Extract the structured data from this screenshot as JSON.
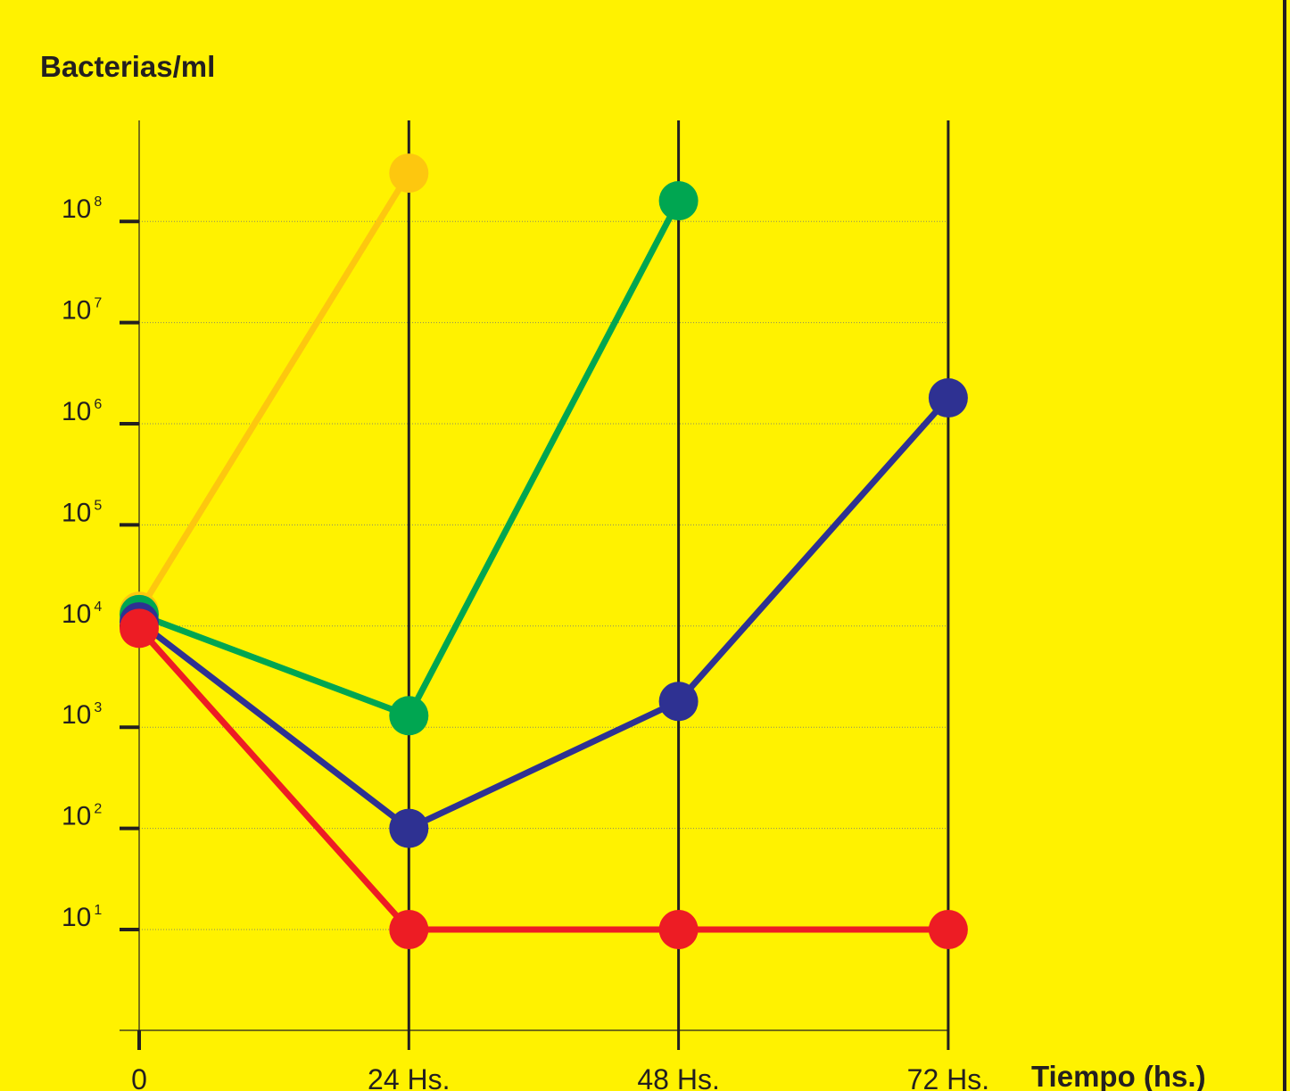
{
  "chart_data": {
    "type": "line",
    "ylabel": "Bacterias/ml",
    "xlabel": "Tiempo (hs.)",
    "y_scale": "log",
    "x": [
      0,
      24,
      48,
      72
    ],
    "x_tick_labels": [
      "0",
      "24 Hs.",
      "48 Hs.",
      "72 Hs."
    ],
    "y_ticks": [
      {
        "base": "10",
        "exp": "1",
        "value": 10
      },
      {
        "base": "10",
        "exp": "2",
        "value": 100
      },
      {
        "base": "10",
        "exp": "3",
        "value": 1000
      },
      {
        "base": "10",
        "exp": "4",
        "value": 10000
      },
      {
        "base": "10",
        "exp": "5",
        "value": 100000
      },
      {
        "base": "10",
        "exp": "6",
        "value": 1000000
      },
      {
        "base": "10",
        "exp": "7",
        "value": 10000000
      },
      {
        "base": "10",
        "exp": "8",
        "value": 100000000
      }
    ],
    "ylim": [
      1,
      500000000
    ],
    "grid": "horizontal dotted at decades",
    "legend": "none",
    "series": [
      {
        "color": "#fdc70f",
        "x": [
          0,
          24
        ],
        "values": [
          14000,
          300000000
        ]
      },
      {
        "color": "#00a651",
        "x": [
          0,
          24,
          48
        ],
        "values": [
          13000,
          1300,
          160000000
        ]
      },
      {
        "color": "#2e3192",
        "x": [
          0,
          24,
          48,
          72
        ],
        "values": [
          11000,
          100,
          1800,
          1800000
        ]
      },
      {
        "color": "#ed1c24",
        "x": [
          0,
          24,
          48,
          72
        ],
        "values": [
          9500,
          10,
          10,
          10
        ]
      }
    ]
  },
  "colors": {
    "background": "#fff200",
    "ink": "#231f20"
  }
}
